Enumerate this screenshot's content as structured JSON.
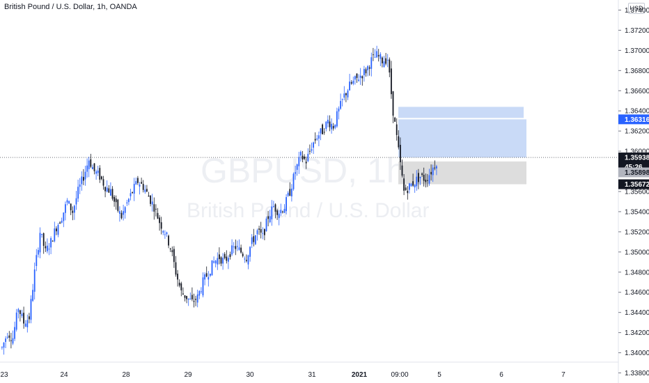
{
  "header": {
    "title": "British Pound / U.S. Dollar, 1h, OANDA",
    "currency_button": "USD"
  },
  "watermark": {
    "symbol": "GBPUSD, 1h",
    "name": "British Pound / U.S. Dollar"
  },
  "colors": {
    "bull": "#2962ff",
    "bear": "#131722",
    "target_zone": "#bbd1f5",
    "stop_zone": "#d5d5d5",
    "price_tag": "#2962ff",
    "last_tag": "#131722"
  },
  "chart_data": {
    "type": "candlestick",
    "title": "British Pound / U.S. Dollar, 1h, OANDA",
    "xlabel": "",
    "ylabel": "",
    "ylim": [
      1.337,
      1.375
    ],
    "y_ticks": [
      "1.33800",
      "1.34000",
      "1.34200",
      "1.34400",
      "1.34600",
      "1.34800",
      "1.35000",
      "1.35200",
      "1.35400",
      "1.35600",
      "1.35800",
      "1.36000",
      "1.36200",
      "1.36400",
      "1.36600",
      "1.36800",
      "1.37000",
      "1.37200",
      "1.37400"
    ],
    "x_ticks": [
      "23",
      "24",
      "28",
      "29",
      "30",
      "31",
      "2021",
      "09:00",
      "5",
      "6",
      "7"
    ],
    "close_path": [
      [
        0,
        1.3405
      ],
      [
        3,
        1.342
      ],
      [
        6,
        1.3415
      ],
      [
        9,
        1.3445
      ],
      [
        12,
        1.343
      ],
      [
        15,
        1.3435
      ],
      [
        18,
        1.348
      ],
      [
        21,
        1.352
      ],
      [
        24,
        1.35
      ],
      [
        27,
        1.351
      ],
      [
        30,
        1.3525
      ],
      [
        33,
        1.3535
      ],
      [
        36,
        1.355
      ],
      [
        39,
        1.354
      ],
      [
        42,
        1.356
      ],
      [
        45,
        1.3575
      ],
      [
        48,
        1.3592
      ],
      [
        51,
        1.358
      ],
      [
        54,
        1.3575
      ],
      [
        57,
        1.3565
      ],
      [
        60,
        1.356
      ],
      [
        63,
        1.3545
      ],
      [
        66,
        1.3535
      ],
      [
        69,
        1.3548
      ],
      [
        72,
        1.356
      ],
      [
        75,
        1.357
      ],
      [
        78,
        1.3565
      ],
      [
        81,
        1.3555
      ],
      [
        84,
        1.3545
      ],
      [
        87,
        1.353
      ],
      [
        90,
        1.352
      ],
      [
        93,
        1.3505
      ],
      [
        96,
        1.348
      ],
      [
        99,
        1.346
      ],
      [
        102,
        1.3455
      ],
      [
        105,
        1.345
      ],
      [
        108,
        1.3455
      ],
      [
        111,
        1.347
      ],
      [
        114,
        1.348
      ],
      [
        117,
        1.349
      ],
      [
        120,
        1.3495
      ],
      [
        123,
        1.349
      ],
      [
        126,
        1.35
      ],
      [
        129,
        1.3505
      ],
      [
        132,
        1.35
      ],
      [
        135,
        1.3495
      ],
      [
        138,
        1.351
      ],
      [
        141,
        1.352
      ],
      [
        144,
        1.3515
      ],
      [
        147,
        1.3535
      ],
      [
        150,
        1.3545
      ],
      [
        153,
        1.354
      ],
      [
        156,
        1.3545
      ],
      [
        159,
        1.356
      ],
      [
        162,
        1.358
      ],
      [
        165,
        1.3595
      ],
      [
        168,
        1.359
      ],
      [
        171,
        1.3605
      ],
      [
        174,
        1.3615
      ],
      [
        177,
        1.362
      ],
      [
        180,
        1.363
      ],
      [
        183,
        1.3625
      ],
      [
        186,
        1.364
      ],
      [
        189,
        1.3655
      ],
      [
        192,
        1.3665
      ],
      [
        195,
        1.367
      ],
      [
        198,
        1.3675
      ],
      [
        201,
        1.368
      ],
      [
        204,
        1.369
      ],
      [
        207,
        1.3695
      ],
      [
        210,
        1.369
      ],
      [
        213,
        1.3692
      ],
      [
        216,
        1.364
      ],
      [
        219,
        1.36
      ],
      [
        222,
        1.356
      ],
      [
        225,
        1.3565
      ],
      [
        228,
        1.357
      ],
      [
        231,
        1.3575
      ],
      [
        234,
        1.3572
      ],
      [
        237,
        1.358
      ],
      [
        240,
        1.359
      ]
    ],
    "annotations": [
      {
        "type": "target_zone",
        "y_from": 1.35938,
        "y_to": 1.36316
      },
      {
        "type": "stop_zone",
        "y_from": 1.35672,
        "y_to": 1.35898
      }
    ],
    "price_labels": [
      {
        "label": "1.36316",
        "value": 1.36316,
        "style": "blue"
      },
      {
        "label": "1.35938",
        "value": 1.35938,
        "style": "dark"
      },
      {
        "label": "45:26",
        "value": 1.35845,
        "style": "dark"
      },
      {
        "label": "1.35898",
        "value": 1.3579,
        "style": "gray"
      },
      {
        "label": "1.35672",
        "value": 1.35672,
        "style": "dark"
      }
    ],
    "last_price": 1.35938,
    "grid": false,
    "legend": "none"
  }
}
